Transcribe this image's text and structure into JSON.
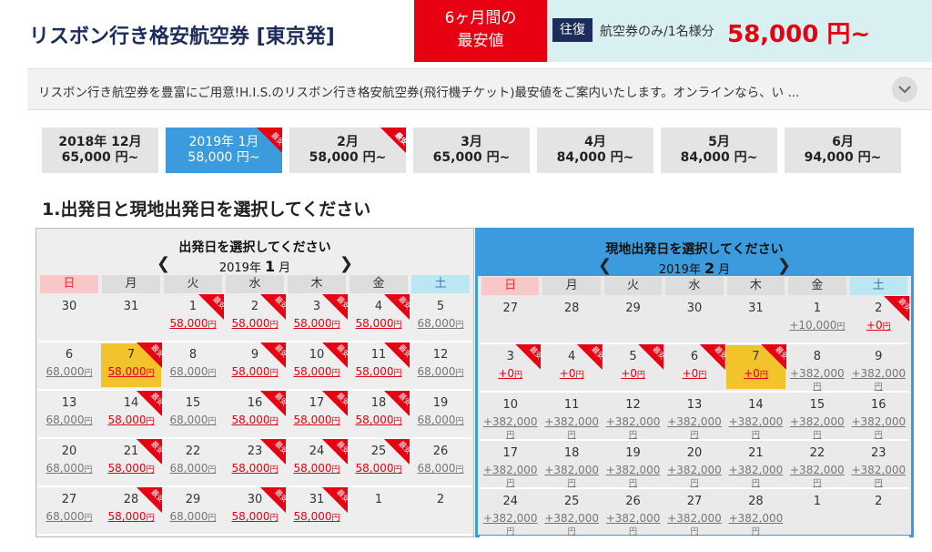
{
  "header": {
    "title": "リスボン行き格安航空券 [東京発]",
    "badge_lines": [
      "6ヶ月間の",
      "最安値"
    ],
    "trip_type": "往復",
    "note": "航空券のみ/1名様分",
    "price": "58,000 円~"
  },
  "description": "リスボン行き航空券を豊富にご用意!H.I.S.のリスボン行き格安航空券(飛行機チケット)最安値をご案内いたします。オンラインなら、い ...",
  "labels": {
    "cheapest": "最安",
    "yen": "円",
    "year_unit": "年",
    "month_unit": "月"
  },
  "months": [
    {
      "label": "2018年 12月",
      "price": "65,000 円~"
    },
    {
      "label": "2019年 1月",
      "price": "58,000 円~",
      "active": true,
      "cheapest": true
    },
    {
      "label": "2月",
      "price": "58,000 円~",
      "cheapest": true
    },
    {
      "label": "3月",
      "price": "65,000 円~"
    },
    {
      "label": "4月",
      "price": "84,000 円~"
    },
    {
      "label": "5月",
      "price": "84,000 円~"
    },
    {
      "label": "6月",
      "price": "94,000 円~"
    }
  ],
  "section_title": "1.出発日と現地出発日を選択してください",
  "weekdays": [
    "日",
    "月",
    "火",
    "水",
    "木",
    "金",
    "土"
  ],
  "departure": {
    "title": "出発日を選択してください",
    "year": 2019,
    "month": 1,
    "weeks": [
      [
        {
          "day": 30
        },
        {
          "day": 31
        },
        {
          "day": 1,
          "price": "58,000",
          "cheapest": true
        },
        {
          "day": 2,
          "price": "58,000",
          "cheapest": true
        },
        {
          "day": 3,
          "price": "58,000",
          "cheapest": true
        },
        {
          "day": 4,
          "price": "58,000",
          "cheapest": true
        },
        {
          "day": 5,
          "price": "68,000"
        }
      ],
      [
        {
          "day": 6,
          "price": "68,000"
        },
        {
          "day": 7,
          "price": "58,000",
          "cheapest": true,
          "selected": true
        },
        {
          "day": 8,
          "price": "68,000"
        },
        {
          "day": 9,
          "price": "58,000",
          "cheapest": true
        },
        {
          "day": 10,
          "price": "58,000",
          "cheapest": true
        },
        {
          "day": 11,
          "price": "58,000",
          "cheapest": true
        },
        {
          "day": 12,
          "price": "68,000"
        }
      ],
      [
        {
          "day": 13,
          "price": "68,000"
        },
        {
          "day": 14,
          "price": "58,000",
          "cheapest": true
        },
        {
          "day": 15,
          "price": "68,000"
        },
        {
          "day": 16,
          "price": "58,000",
          "cheapest": true
        },
        {
          "day": 17,
          "price": "58,000",
          "cheapest": true
        },
        {
          "day": 18,
          "price": "58,000",
          "cheapest": true
        },
        {
          "day": 19,
          "price": "68,000"
        }
      ],
      [
        {
          "day": 20,
          "price": "68,000"
        },
        {
          "day": 21,
          "price": "58,000",
          "cheapest": true
        },
        {
          "day": 22,
          "price": "68,000"
        },
        {
          "day": 23,
          "price": "58,000",
          "cheapest": true
        },
        {
          "day": 24,
          "price": "58,000",
          "cheapest": true
        },
        {
          "day": 25,
          "price": "58,000",
          "cheapest": true
        },
        {
          "day": 26,
          "price": "68,000"
        }
      ],
      [
        {
          "day": 27,
          "price": "68,000"
        },
        {
          "day": 28,
          "price": "58,000",
          "cheapest": true
        },
        {
          "day": 29,
          "price": "68,000"
        },
        {
          "day": 30,
          "price": "58,000",
          "cheapest": true
        },
        {
          "day": 31,
          "price": "58,000",
          "cheapest": true
        },
        {
          "day": 1
        },
        {
          "day": 2
        }
      ]
    ]
  },
  "return": {
    "title": "現地出発日を選択してください",
    "year": 2019,
    "month": 2,
    "weeks": [
      [
        {
          "day": 27
        },
        {
          "day": 28
        },
        {
          "day": 29
        },
        {
          "day": 30
        },
        {
          "day": 31
        },
        {
          "day": 1,
          "price": "+10,000"
        },
        {
          "day": 2,
          "price": "+0",
          "cheapest": true
        }
      ],
      [
        {
          "day": 3,
          "price": "+0",
          "cheapest": true
        },
        {
          "day": 4,
          "price": "+0",
          "cheapest": true
        },
        {
          "day": 5,
          "price": "+0",
          "cheapest": true
        },
        {
          "day": 6,
          "price": "+0",
          "cheapest": true
        },
        {
          "day": 7,
          "price": "+0",
          "cheapest": true,
          "selected": true
        },
        {
          "day": 8,
          "price": "+382,000"
        },
        {
          "day": 9,
          "price": "+382,000"
        }
      ],
      [
        {
          "day": 10,
          "price": "+382,000"
        },
        {
          "day": 11,
          "price": "+382,000"
        },
        {
          "day": 12,
          "price": "+382,000"
        },
        {
          "day": 13,
          "price": "+382,000"
        },
        {
          "day": 14,
          "price": "+382,000"
        },
        {
          "day": 15,
          "price": "+382,000"
        },
        {
          "day": 16,
          "price": "+382,000"
        }
      ],
      [
        {
          "day": 17,
          "price": "+382,000"
        },
        {
          "day": 18,
          "price": "+382,000"
        },
        {
          "day": 19,
          "price": "+382,000"
        },
        {
          "day": 20,
          "price": "+382,000"
        },
        {
          "day": 21,
          "price": "+382,000"
        },
        {
          "day": 22,
          "price": "+382,000"
        },
        {
          "day": 23,
          "price": "+382,000"
        }
      ],
      [
        {
          "day": 24,
          "price": "+382,000"
        },
        {
          "day": 25,
          "price": "+382,000"
        },
        {
          "day": 26,
          "price": "+382,000"
        },
        {
          "day": 27,
          "price": "+382,000"
        },
        {
          "day": 28,
          "price": "+382,000"
        },
        {
          "day": 1
        },
        {
          "day": 2
        }
      ]
    ]
  }
}
